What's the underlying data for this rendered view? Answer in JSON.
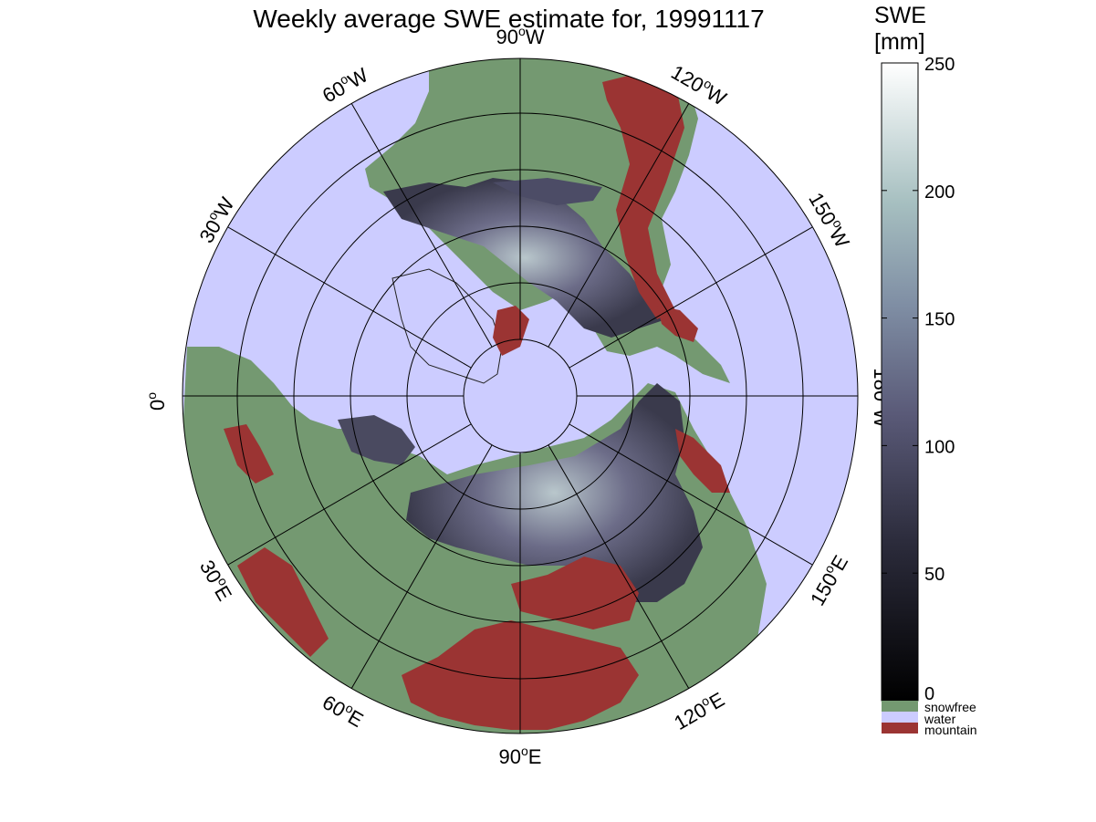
{
  "title": "Weekly average SWE estimate for, 19991117",
  "longitude_labels": {
    "deg_symbol": "o",
    "lon_90W": {
      "value": "90",
      "suffix": "W"
    },
    "lon_60W": {
      "value": "60",
      "suffix": "W"
    },
    "lon_120W": {
      "value": "120",
      "suffix": "W"
    },
    "lon_30W": {
      "value": "30",
      "suffix": "W"
    },
    "lon_150W": {
      "value": "150",
      "suffix": "W"
    },
    "lon_0": {
      "value": "0",
      "suffix": ""
    },
    "lon_180W": {
      "value": "180",
      "suffix": "W"
    },
    "lon_30E": {
      "value": "30",
      "suffix": "E"
    },
    "lon_150E": {
      "value": "150",
      "suffix": "E"
    },
    "lon_60E": {
      "value": "60",
      "suffix": "E"
    },
    "lon_120E": {
      "value": "120",
      "suffix": "E"
    },
    "lon_90E": {
      "value": "90",
      "suffix": "E"
    }
  },
  "colorbar": {
    "title_line1": "SWE",
    "title_line2": "[mm]",
    "ticks": [
      "0",
      "50",
      "100",
      "150",
      "200",
      "250"
    ],
    "range": [
      0,
      250
    ],
    "colormap": "bone (black to white)"
  },
  "categories": [
    {
      "label": "snowfree",
      "color": "#749971"
    },
    {
      "label": "water",
      "color": "#ccccff"
    },
    {
      "label": "mountain",
      "color": "#9b3433"
    }
  ],
  "colors": {
    "snowfree": "#749971",
    "water": "#ccccff",
    "mountain": "#9b3433",
    "swe_low": "#1a1a22",
    "swe_mid": "#5a5a78",
    "swe_high": "#ffffff"
  }
}
